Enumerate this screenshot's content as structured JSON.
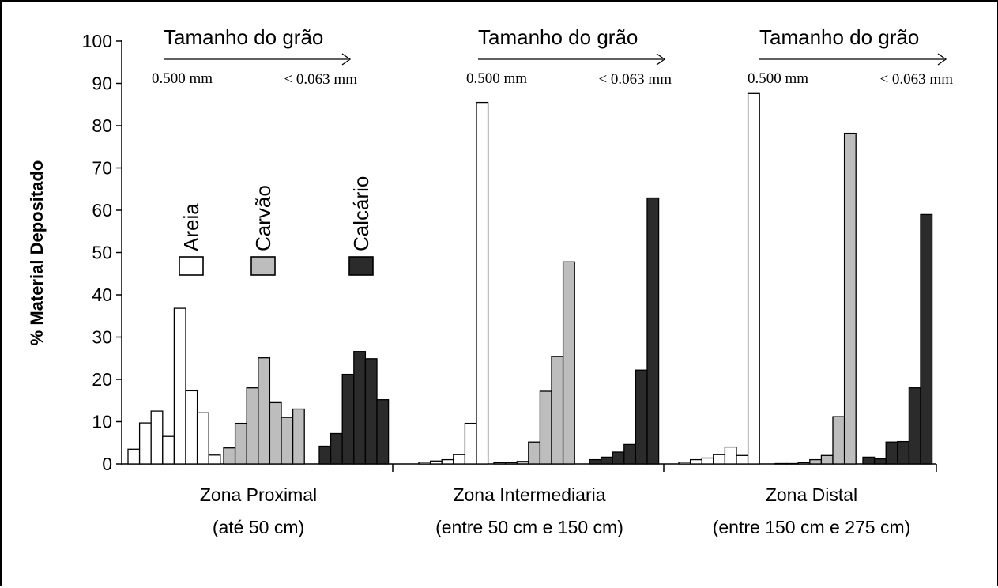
{
  "chart_data": {
    "type": "bar",
    "ylabel": "% Material Depositado",
    "ylim": [
      0,
      100
    ],
    "yticks": [
      0,
      10,
      20,
      30,
      40,
      50,
      60,
      70,
      80,
      90,
      100
    ],
    "grid": false,
    "grain_size_label": "Tamanho do grão",
    "grain_size_start": "0.500 mm",
    "grain_size_end": "< 0.063 mm",
    "legend": [
      {
        "name": "Areia",
        "color": "#ffffff"
      },
      {
        "name": "Carvão",
        "color": "#bdbdbd"
      },
      {
        "name": "Calcário",
        "color": "#2b2b2b"
      }
    ],
    "groups": [
      {
        "name": "Zona Proximal",
        "subtitle": "(até 50 cm)",
        "series": [
          {
            "name": "Areia",
            "values": [
              3.5,
              9.7,
              12.5,
              6.5,
              36.8,
              17.3,
              12.1,
              2.1
            ]
          },
          {
            "name": "Carvão",
            "values": [
              3.8,
              9.6,
              18.0,
              25.1,
              14.5,
              11.0,
              13.0
            ]
          },
          {
            "name": "Calcário",
            "values": [
              4.2,
              7.2,
              21.2,
              26.6,
              24.9,
              15.2
            ]
          }
        ]
      },
      {
        "name": "Zona Intermediaria",
        "subtitle": "(entre 50 cm e 150 cm)",
        "series": [
          {
            "name": "Areia",
            "values": [
              0.4,
              0.7,
              1.0,
              2.2,
              9.6,
              85.5
            ]
          },
          {
            "name": "Carvão",
            "values": [
              0.3,
              0.3,
              0.6,
              5.2,
              17.2,
              25.4,
              47.8
            ]
          },
          {
            "name": "Calcário",
            "values": [
              1.0,
              1.6,
              2.8,
              4.6,
              22.2,
              62.9
            ]
          }
        ]
      },
      {
        "name": "Zona Distal",
        "subtitle": "(entre 150 cm e 275 cm)",
        "series": [
          {
            "name": "Areia",
            "values": [
              0.4,
              1.0,
              1.4,
              2.2,
              4.0,
              2.0,
              87.6
            ]
          },
          {
            "name": "Carvão",
            "values": [
              0.1,
              0.1,
              0.3,
              1.0,
              2.0,
              11.2,
              78.2
            ]
          },
          {
            "name": "Calcário",
            "values": [
              1.6,
              1.2,
              5.2,
              5.3,
              18.0,
              59.0
            ]
          }
        ]
      }
    ]
  }
}
